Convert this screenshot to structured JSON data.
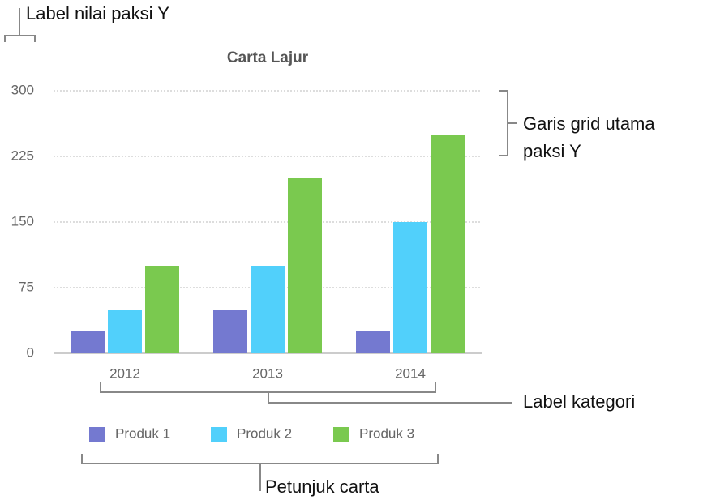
{
  "chart_data": {
    "type": "bar",
    "title": "Carta Lajur",
    "categories": [
      "2012",
      "2013",
      "2014"
    ],
    "series": [
      {
        "name": "Produk 1",
        "color": "#7479d0",
        "values": [
          25,
          50,
          25
        ]
      },
      {
        "name": "Produk 2",
        "color": "#51d0fb",
        "values": [
          50,
          100,
          150
        ]
      },
      {
        "name": "Produk 3",
        "color": "#7ac94f",
        "values": [
          100,
          200,
          250
        ]
      }
    ],
    "ylim": [
      0,
      300
    ],
    "yticks": [
      0,
      75,
      150,
      225,
      300
    ],
    "grid": true,
    "legend": "bottom"
  },
  "annotations": {
    "y_axis_label": "Label nilai paksi Y",
    "gridlines": [
      "Garis grid utama",
      "paksi Y"
    ],
    "category_label": "Label kategori",
    "legend": "Petunjuk carta"
  }
}
